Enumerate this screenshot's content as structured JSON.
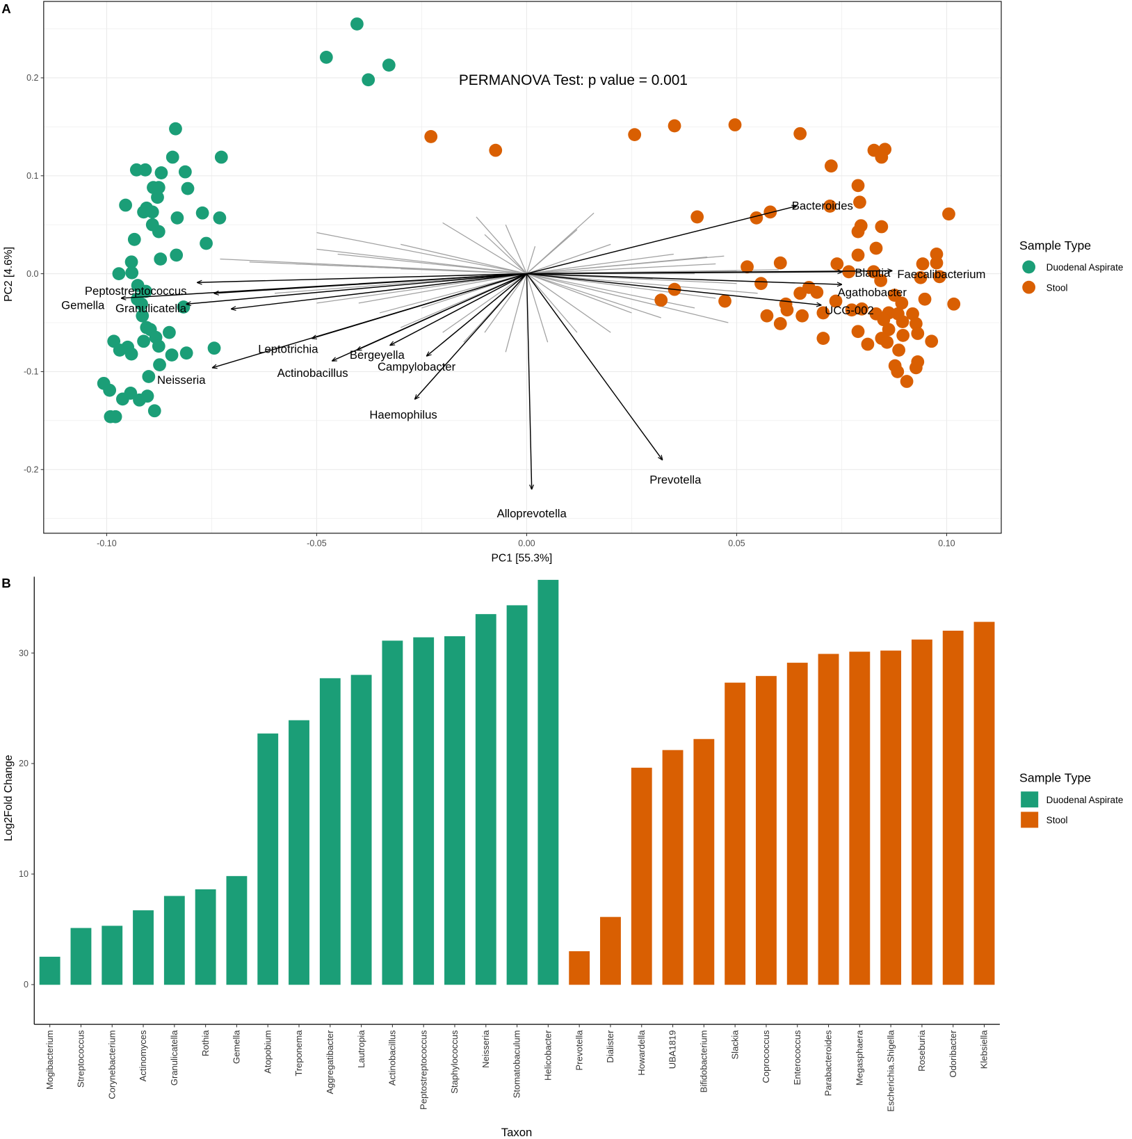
{
  "colors": {
    "Duodenal Aspirate": "#1b9e77",
    "Stool": "#d95f02",
    "loading": "#a0a0a0",
    "arrow": "#000000"
  },
  "chart_data": [
    {
      "panel": "A",
      "type": "scatter",
      "title": "PERMANOVA Test: p value = 0.001",
      "xlabel": "PC1 [55.3%]",
      "ylabel": "PC2 [4.6%]",
      "xlim": [
        -0.115,
        0.113
      ],
      "ylim": [
        -0.265,
        0.278
      ],
      "xticks": [
        "-0.10",
        "-0.05",
        "0.00",
        "0.05",
        "0.10"
      ],
      "yticks": [
        "-0.2",
        "-0.1",
        "0.0",
        "0.1",
        "0.2"
      ],
      "grid": true,
      "legend": {
        "title": "Sample Type",
        "placement": "right",
        "entries": [
          "Duodenal Aspirate",
          "Stool"
        ]
      },
      "series": [
        {
          "name": "Duodenal Aspirate",
          "points": [
            [
              -0.0404,
              0.255
            ],
            [
              -0.0477,
              0.221
            ],
            [
              -0.0328,
              0.213
            ],
            [
              -0.0377,
              0.198
            ],
            [
              -0.0836,
              0.148
            ],
            [
              -0.0843,
              0.119
            ],
            [
              -0.0727,
              0.119
            ],
            [
              -0.0929,
              0.106
            ],
            [
              -0.0908,
              0.106
            ],
            [
              -0.087,
              0.103
            ],
            [
              -0.0813,
              0.104
            ],
            [
              -0.0889,
              0.088
            ],
            [
              -0.0876,
              0.088
            ],
            [
              -0.0807,
              0.087
            ],
            [
              -0.0879,
              0.078
            ],
            [
              -0.0955,
              0.07
            ],
            [
              -0.0905,
              0.067
            ],
            [
              -0.0912,
              0.063
            ],
            [
              -0.0891,
              0.063
            ],
            [
              -0.0832,
              0.057
            ],
            [
              -0.0772,
              0.062
            ],
            [
              -0.0731,
              0.057
            ],
            [
              -0.0891,
              0.05
            ],
            [
              -0.0876,
              0.043
            ],
            [
              -0.0934,
              0.035
            ],
            [
              -0.0763,
              0.031
            ],
            [
              -0.0941,
              0.012
            ],
            [
              -0.0872,
              0.015
            ],
            [
              -0.0834,
              0.019
            ],
            [
              -0.0971,
              0.0
            ],
            [
              -0.094,
              0.001
            ],
            [
              -0.0926,
              -0.012
            ],
            [
              -0.0907,
              -0.018
            ],
            [
              -0.0927,
              -0.026
            ],
            [
              -0.0917,
              -0.031
            ],
            [
              -0.0817,
              -0.034
            ],
            [
              -0.0915,
              -0.043
            ],
            [
              -0.0905,
              -0.055
            ],
            [
              -0.0896,
              -0.057
            ],
            [
              -0.0851,
              -0.06
            ],
            [
              -0.0883,
              -0.065
            ],
            [
              -0.0983,
              -0.069
            ],
            [
              -0.0912,
              -0.069
            ],
            [
              -0.095,
              -0.075
            ],
            [
              -0.0969,
              -0.078
            ],
            [
              -0.0941,
              -0.082
            ],
            [
              -0.0876,
              -0.074
            ],
            [
              -0.081,
              -0.081
            ],
            [
              -0.0744,
              -0.076
            ],
            [
              -0.0845,
              -0.083
            ],
            [
              -0.0874,
              -0.093
            ],
            [
              -0.09,
              -0.105
            ],
            [
              -0.1007,
              -0.112
            ],
            [
              -0.0993,
              -0.119
            ],
            [
              -0.0962,
              -0.128
            ],
            [
              -0.0943,
              -0.122
            ],
            [
              -0.0922,
              -0.129
            ],
            [
              -0.0903,
              -0.125
            ],
            [
              -0.0886,
              -0.14
            ],
            [
              -0.0991,
              -0.146
            ],
            [
              -0.0979,
              -0.146
            ]
          ]
        },
        {
          "name": "Stool",
          "points": [
            [
              -0.0228,
              0.14
            ],
            [
              -0.0074,
              0.126
            ],
            [
              0.0257,
              0.142
            ],
            [
              0.0352,
              0.151
            ],
            [
              0.0496,
              0.152
            ],
            [
              0.0651,
              0.143
            ],
            [
              0.0725,
              0.11
            ],
            [
              0.0827,
              0.126
            ],
            [
              0.0853,
              0.127
            ],
            [
              0.0845,
              0.119
            ],
            [
              0.0789,
              0.09
            ],
            [
              0.0793,
              0.073
            ],
            [
              0.0722,
              0.069
            ],
            [
              0.0406,
              0.058
            ],
            [
              0.0547,
              0.057
            ],
            [
              0.058,
              0.063
            ],
            [
              0.1005,
              0.061
            ],
            [
              0.0796,
              0.049
            ],
            [
              0.0789,
              0.043
            ],
            [
              0.0845,
              0.048
            ],
            [
              0.0832,
              0.026
            ],
            [
              0.0789,
              0.019
            ],
            [
              0.0976,
              0.02
            ],
            [
              0.0525,
              0.007
            ],
            [
              0.0604,
              0.011
            ],
            [
              0.0739,
              0.01
            ],
            [
              0.0943,
              0.01
            ],
            [
              0.0976,
              0.011
            ],
            [
              0.0767,
              0.002
            ],
            [
              0.0826,
              0.002
            ],
            [
              0.0843,
              -0.007
            ],
            [
              0.0558,
              -0.01
            ],
            [
              0.0938,
              -0.004
            ],
            [
              0.0983,
              -0.003
            ],
            [
              0.0672,
              -0.014
            ],
            [
              0.0651,
              -0.02
            ],
            [
              0.0691,
              -0.019
            ],
            [
              0.032,
              -0.027
            ],
            [
              0.0352,
              -0.016
            ],
            [
              0.0472,
              -0.028
            ],
            [
              0.0617,
              -0.031
            ],
            [
              0.062,
              -0.037
            ],
            [
              0.0736,
              -0.028
            ],
            [
              0.0876,
              -0.022
            ],
            [
              0.0893,
              -0.03
            ],
            [
              0.0948,
              -0.026
            ],
            [
              0.1017,
              -0.031
            ],
            [
              0.0706,
              -0.04
            ],
            [
              0.0572,
              -0.043
            ],
            [
              0.0656,
              -0.043
            ],
            [
              0.0604,
              -0.051
            ],
            [
              0.0774,
              -0.037
            ],
            [
              0.0798,
              -0.036
            ],
            [
              0.0832,
              -0.041
            ],
            [
              0.0862,
              -0.04
            ],
            [
              0.0884,
              -0.041
            ],
            [
              0.0895,
              -0.049
            ],
            [
              0.085,
              -0.047
            ],
            [
              0.0862,
              -0.057
            ],
            [
              0.0919,
              -0.041
            ],
            [
              0.0927,
              -0.051
            ],
            [
              0.0896,
              -0.063
            ],
            [
              0.0931,
              -0.061
            ],
            [
              0.0706,
              -0.066
            ],
            [
              0.0789,
              -0.059
            ],
            [
              0.0812,
              -0.072
            ],
            [
              0.0845,
              -0.066
            ],
            [
              0.0858,
              -0.07
            ],
            [
              0.0886,
              -0.078
            ],
            [
              0.0964,
              -0.069
            ],
            [
              0.0877,
              -0.094
            ],
            [
              0.0883,
              -0.1
            ],
            [
              0.0931,
              -0.09
            ],
            [
              0.0927,
              -0.096
            ],
            [
              0.0905,
              -0.11
            ]
          ]
        }
      ],
      "loadings": [
        {
          "taxon": "Bacteroides",
          "x": 0.0642,
          "y": 0.069
        },
        {
          "taxon": "Blautia",
          "x": 0.0751,
          "y": 0.002
        },
        {
          "taxon": "Faecalibacterium",
          "x": 0.087,
          "y": 0.003
        },
        {
          "taxon": "Agathobacter",
          "x": 0.075,
          "y": -0.011
        },
        {
          "taxon": "UCG-002",
          "x": 0.0701,
          "y": -0.032
        },
        {
          "taxon": "Prevotella",
          "x": 0.0323,
          "y": -0.19
        },
        {
          "taxon": "Alloprevotella",
          "x": 0.0012,
          "y": -0.22
        },
        {
          "taxon": "Haemophilus",
          "x": -0.0266,
          "y": -0.128
        },
        {
          "taxon": "Campylobacter",
          "x": -0.0238,
          "y": -0.084
        },
        {
          "taxon": "Bergeyella",
          "x": -0.0325,
          "y": -0.073
        },
        {
          "taxon": "Actinobacillus",
          "x": -0.0463,
          "y": -0.089
        },
        {
          "taxon": "Leptotrichia",
          "x": -0.0511,
          "y": -0.066
        },
        {
          "taxon": "Neisseria",
          "x": -0.0748,
          "y": -0.096
        },
        {
          "taxon": "Peptostreptococcus",
          "x": -0.0784,
          "y": -0.009
        },
        {
          "taxon": "Gemella",
          "x": -0.0965,
          "y": -0.025
        },
        {
          "taxon": "Granulicatella",
          "x": -0.081,
          "y": -0.031
        },
        {
          "taxon": "",
          "x": -0.0744,
          "y": -0.02
        },
        {
          "taxon": "",
          "x": -0.0703,
          "y": -0.036
        },
        {
          "taxon": "",
          "x": -0.0404,
          "y": -0.078
        }
      ],
      "minor_loadings": [
        [
          -0.073,
          0.015
        ],
        [
          -0.066,
          0.012
        ],
        [
          -0.05,
          0.042
        ],
        [
          -0.05,
          0.025
        ],
        [
          -0.045,
          0.02
        ],
        [
          -0.03,
          0.03
        ],
        [
          -0.02,
          0.052
        ],
        [
          -0.012,
          0.058
        ],
        [
          -0.01,
          0.04
        ],
        [
          -0.005,
          0.05
        ],
        [
          0.002,
          0.028
        ],
        [
          0.016,
          0.062
        ],
        [
          0.012,
          0.045
        ],
        [
          0.02,
          0.03
        ],
        [
          0.035,
          0.02
        ],
        [
          0.043,
          0.017
        ],
        [
          0.047,
          0.018
        ],
        [
          0.045,
          0.01
        ],
        [
          0.06,
          0.004
        ],
        [
          0.05,
          -0.01
        ],
        [
          0.045,
          -0.025
        ],
        [
          0.048,
          -0.05
        ],
        [
          0.04,
          -0.035
        ],
        [
          0.032,
          -0.045
        ],
        [
          0.025,
          -0.04
        ],
        [
          0.02,
          -0.06
        ],
        [
          0.012,
          -0.06
        ],
        [
          0.005,
          -0.07
        ],
        [
          -0.005,
          -0.08
        ],
        [
          -0.01,
          -0.06
        ],
        [
          -0.015,
          -0.07
        ],
        [
          -0.02,
          -0.06
        ],
        [
          -0.03,
          -0.055
        ],
        [
          -0.035,
          -0.04
        ],
        [
          -0.04,
          -0.03
        ],
        [
          -0.05,
          -0.03
        ],
        [
          -0.06,
          -0.02
        ],
        [
          -0.04,
          -0.01
        ],
        [
          -0.03,
          0.005
        ],
        [
          0.03,
          -0.005
        ],
        [
          0.05,
          0.003
        ],
        [
          0.055,
          -0.02
        ],
        [
          0.04,
          0.0
        ],
        [
          -0.055,
          0.01
        ],
        [
          -0.025,
          -0.035
        ]
      ]
    },
    {
      "panel": "B",
      "type": "bar",
      "xlabel": "Taxon",
      "ylabel": "Log2Fold Change",
      "ylim": [
        -3.6,
        36.9
      ],
      "yticks": [
        "0",
        "10",
        "20",
        "30"
      ],
      "grid": false,
      "legend": {
        "title": "Sample Type",
        "placement": "right",
        "entries": [
          "Duodenal Aspirate",
          "Stool"
        ]
      },
      "categories": [
        "Mogibacterium",
        "Streptococcus",
        "Corynebacterium",
        "Actinomyces",
        "Granulicatella",
        "Rothia",
        "Gemella",
        "Atopobium",
        "Treponema",
        "Aggregatibacter",
        "Lautropia",
        "Actinobacillus",
        "Peptostreptococcus",
        "Staphylococcus",
        "Neisseria",
        "Stomatobaculum",
        "Helicobacter",
        "Prevotella",
        "Dialister",
        "Howardella",
        "UBA1819",
        "Bifidobacterium",
        "Slackia",
        "Coprococcus",
        "Enterococcus",
        "Parabacteroides",
        "Megasphaera",
        "Escherichia.Shigella",
        "Roseburia",
        "Odoribacter",
        "Klebsiella"
      ],
      "values": [
        2.5,
        5.1,
        5.3,
        6.7,
        8.0,
        8.6,
        9.8,
        22.7,
        23.9,
        27.7,
        28.0,
        31.1,
        31.4,
        31.5,
        33.5,
        34.3,
        36.6,
        3.0,
        6.1,
        19.6,
        21.2,
        22.2,
        27.3,
        27.9,
        29.1,
        29.9,
        30.1,
        30.2,
        31.2,
        32.0,
        32.8
      ],
      "groups": [
        "Duodenal Aspirate",
        "Duodenal Aspirate",
        "Duodenal Aspirate",
        "Duodenal Aspirate",
        "Duodenal Aspirate",
        "Duodenal Aspirate",
        "Duodenal Aspirate",
        "Duodenal Aspirate",
        "Duodenal Aspirate",
        "Duodenal Aspirate",
        "Duodenal Aspirate",
        "Duodenal Aspirate",
        "Duodenal Aspirate",
        "Duodenal Aspirate",
        "Duodenal Aspirate",
        "Duodenal Aspirate",
        "Duodenal Aspirate",
        "Stool",
        "Stool",
        "Stool",
        "Stool",
        "Stool",
        "Stool",
        "Stool",
        "Stool",
        "Stool",
        "Stool",
        "Stool",
        "Stool",
        "Stool",
        "Stool"
      ]
    }
  ]
}
